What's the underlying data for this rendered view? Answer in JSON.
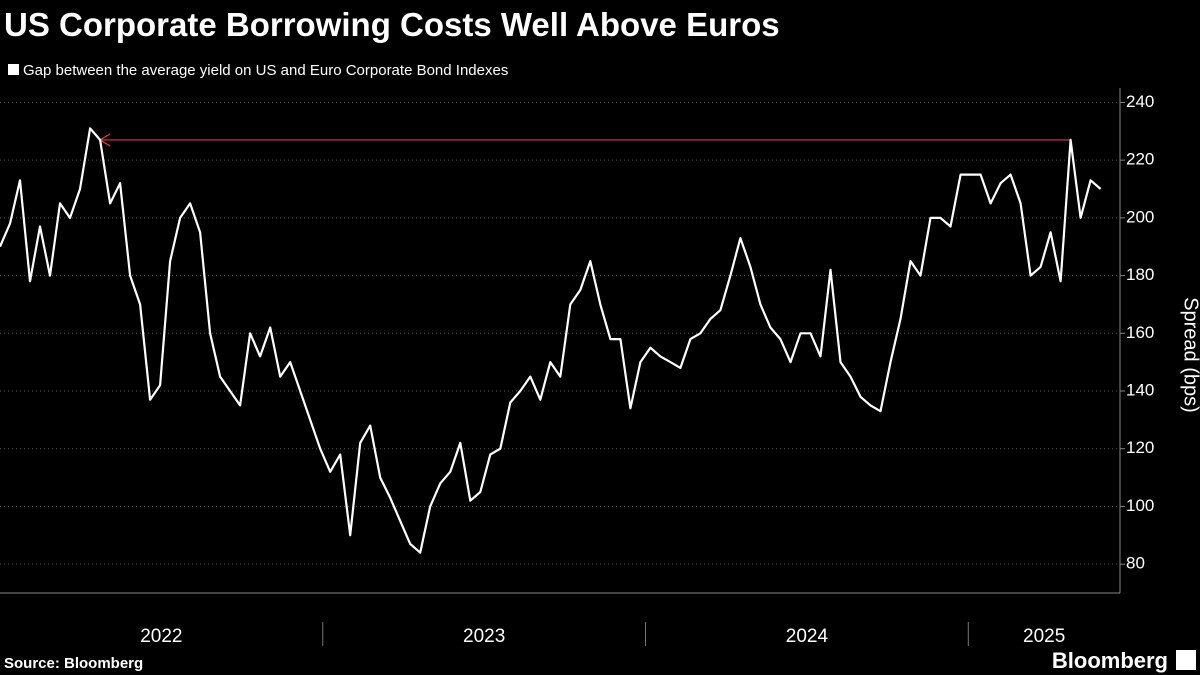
{
  "chart_data": {
    "type": "line",
    "title": "US Corporate Borrowing Costs Well Above Euros",
    "y_label": "Spread (bps)",
    "source": "Source: Bloomberg",
    "brand": "Bloomberg",
    "series": [
      {
        "name": "Gap between the average yield on US and Euro Corporate Bond Indexes",
        "color": "#ffffff",
        "x": [
          2022.0,
          2022.031,
          2022.062,
          2022.093,
          2022.124,
          2022.155,
          2022.186,
          2022.217,
          2022.248,
          2022.279,
          2022.31,
          2022.341,
          2022.372,
          2022.403,
          2022.434,
          2022.465,
          2022.496,
          2022.527,
          2022.558,
          2022.589,
          2022.62,
          2022.651,
          2022.682,
          2022.713,
          2022.744,
          2022.775,
          2022.806,
          2022.837,
          2022.868,
          2022.899,
          2022.93,
          2022.961,
          2022.992,
          2023.023,
          2023.054,
          2023.085,
          2023.116,
          2023.147,
          2023.178,
          2023.209,
          2023.24,
          2023.271,
          2023.302,
          2023.333,
          2023.364,
          2023.395,
          2023.426,
          2023.457,
          2023.488,
          2023.519,
          2023.55,
          2023.581,
          2023.612,
          2023.643,
          2023.674,
          2023.705,
          2023.736,
          2023.767,
          2023.798,
          2023.829,
          2023.86,
          2023.891,
          2023.922,
          2023.953,
          2023.984,
          2024.015,
          2024.046,
          2024.077,
          2024.108,
          2024.139,
          2024.17,
          2024.201,
          2024.232,
          2024.263,
          2024.294,
          2024.325,
          2024.356,
          2024.387,
          2024.418,
          2024.449,
          2024.48,
          2024.511,
          2024.542,
          2024.573,
          2024.604,
          2024.635,
          2024.666,
          2024.697,
          2024.728,
          2024.759,
          2024.79,
          2024.821,
          2024.852,
          2024.883,
          2024.914,
          2024.945,
          2024.976,
          2025.007,
          2025.038,
          2025.069,
          2025.1,
          2025.131,
          2025.162,
          2025.193,
          2025.224,
          2025.255,
          2025.286,
          2025.317,
          2025.348,
          2025.379,
          2025.41
        ],
        "values": [
          190,
          198,
          213,
          178,
          197,
          180,
          205,
          200,
          210,
          231,
          227,
          205,
          212,
          180,
          170,
          137,
          142,
          185,
          200,
          205,
          195,
          160,
          145,
          140,
          135,
          160,
          152,
          162,
          145,
          150,
          140,
          130,
          120,
          112,
          118,
          90,
          122,
          128,
          110,
          103,
          95,
          87,
          84,
          100,
          108,
          112,
          122,
          102,
          105,
          118,
          120,
          136,
          140,
          145,
          137,
          150,
          145,
          170,
          175,
          185,
          170,
          158,
          158,
          134,
          150,
          155,
          152,
          150,
          148,
          158,
          160,
          165,
          168,
          180,
          193,
          183,
          170,
          162,
          158,
          150,
          160,
          160,
          152,
          182,
          150,
          145,
          138,
          135,
          133,
          150,
          165,
          185,
          180,
          200,
          200,
          197,
          215,
          215,
          215,
          205,
          212,
          215,
          205,
          180,
          183,
          195,
          178,
          227,
          200,
          213,
          210
        ]
      }
    ],
    "reference_line": {
      "x": [
        2022.31,
        2025.317
      ],
      "value": 227,
      "color": "#e0383e"
    },
    "xlim": [
      2022,
      2025.47
    ],
    "xticks": [
      2022,
      2023,
      2024,
      2025
    ],
    "ylim": [
      70,
      245
    ],
    "yticks": [
      80,
      100,
      120,
      140,
      160,
      180,
      200,
      220,
      240
    ],
    "grid": true
  }
}
